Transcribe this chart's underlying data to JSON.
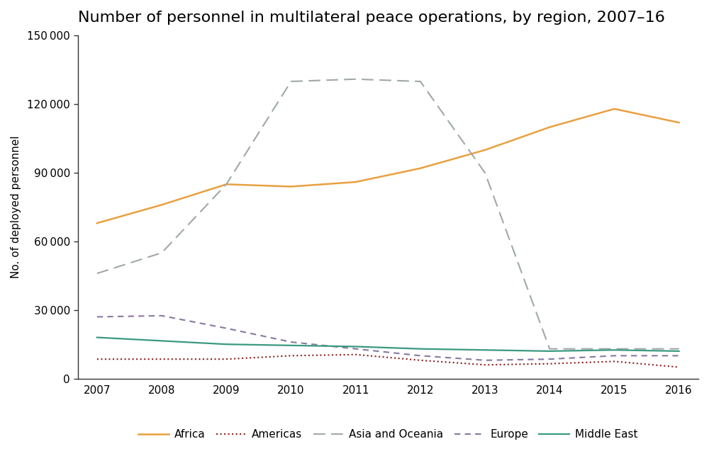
{
  "title": "Number of personnel in multilateral peace operations, by region, 2007–16",
  "years": [
    2007,
    2008,
    2009,
    2010,
    2011,
    2012,
    2013,
    2014,
    2015,
    2016
  ],
  "Africa": [
    68000,
    76000,
    85000,
    84000,
    86000,
    92000,
    100000,
    110000,
    118000,
    112000
  ],
  "Americas": [
    8500,
    8500,
    8500,
    10000,
    10500,
    8000,
    6000,
    6500,
    7500,
    5000
  ],
  "Asia_and_Oceania": [
    46000,
    55000,
    85000,
    130000,
    131000,
    130000,
    90000,
    13000,
    13000,
    13000
  ],
  "Europe": [
    27000,
    27500,
    22000,
    16000,
    13000,
    10000,
    8000,
    8500,
    10000,
    10000
  ],
  "Middle_East": [
    18000,
    16500,
    15000,
    14500,
    14000,
    13000,
    12500,
    12000,
    12500,
    12000
  ],
  "Africa_color": "#E8A040",
  "Americas_color": "#8B2020",
  "Asia_color": "#A0A8A8",
  "Europe_color": "#8878A0",
  "Middle_East_color": "#3A9980",
  "ylabel": "No. of deployed personnel",
  "ylim": [
    0,
    150000
  ],
  "yticks": [
    0,
    30000,
    60000,
    90000,
    120000,
    150000
  ],
  "background_color": "#ffffff",
  "title_fontsize": 16,
  "axis_fontsize": 11,
  "tick_fontsize": 11,
  "legend_labels": [
    "Africa",
    "Americas",
    "Asia and Oceania",
    "Europe",
    "Middle East"
  ]
}
